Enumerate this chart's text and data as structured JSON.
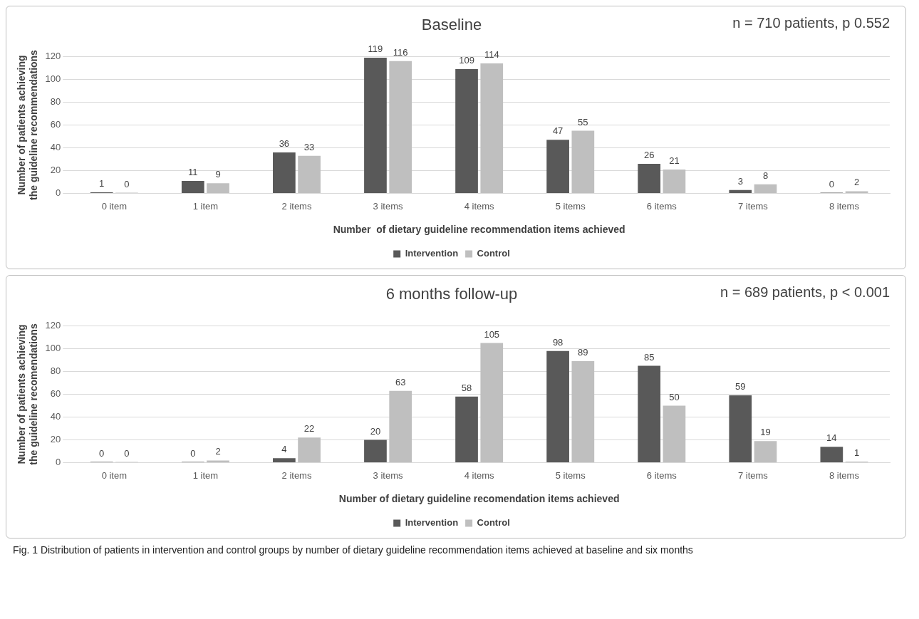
{
  "chart_data": [
    {
      "type": "bar",
      "title": "Baseline",
      "xlabel": "Number  of dietary guideline recommendation items achieved",
      "ylabel": "Number of patients achieving the guideline recommendations",
      "categories": [
        "0 item",
        "1 item",
        "2 items",
        "3 items",
        "4 items",
        "5 items",
        "6 items",
        "7 items",
        "8 items"
      ],
      "series": [
        {
          "name": "Intervention",
          "color": "#595959",
          "values": [
            1,
            11,
            36,
            119,
            109,
            47,
            26,
            3,
            0
          ]
        },
        {
          "name": "Control",
          "color": "#bfbfbf",
          "values": [
            0,
            9,
            33,
            116,
            114,
            55,
            21,
            8,
            2
          ]
        }
      ],
      "ylim": [
        0,
        120
      ],
      "yticks": [
        0,
        20,
        40,
        60,
        80,
        100,
        120
      ],
      "grid": "y",
      "legend": "bottom",
      "data_labels": true,
      "annotations": [
        "n = 710 patients, p 0.552"
      ]
    },
    {
      "type": "bar",
      "title": "6 months follow-up",
      "xlabel": "Number of dietary guideline recomendation items achieved",
      "ylabel": "Number of patients achieving the guideline recomendations",
      "categories": [
        "0 item",
        "1 item",
        "2 items",
        "3 items",
        "4 items",
        "5 items",
        "6 items",
        "7 items",
        "8 items"
      ],
      "series": [
        {
          "name": "Intervention",
          "color": "#595959",
          "values": [
            0,
            0,
            4,
            20,
            58,
            98,
            85,
            59,
            14
          ]
        },
        {
          "name": "Control",
          "color": "#bfbfbf",
          "values": [
            0,
            2,
            22,
            63,
            105,
            89,
            50,
            19,
            1
          ]
        }
      ],
      "ylim": [
        0,
        120
      ],
      "yticks": [
        0,
        20,
        40,
        60,
        80,
        100,
        120
      ],
      "grid": "y",
      "legend": "bottom",
      "data_labels": true,
      "annotations": [
        "n = 689 patients, p < 0.001",
        "Fig. 1 Distribution of patients in intervention and control groups by number of dietary guideline recommendation items achieved at baseline and six months"
      ]
    }
  ]
}
